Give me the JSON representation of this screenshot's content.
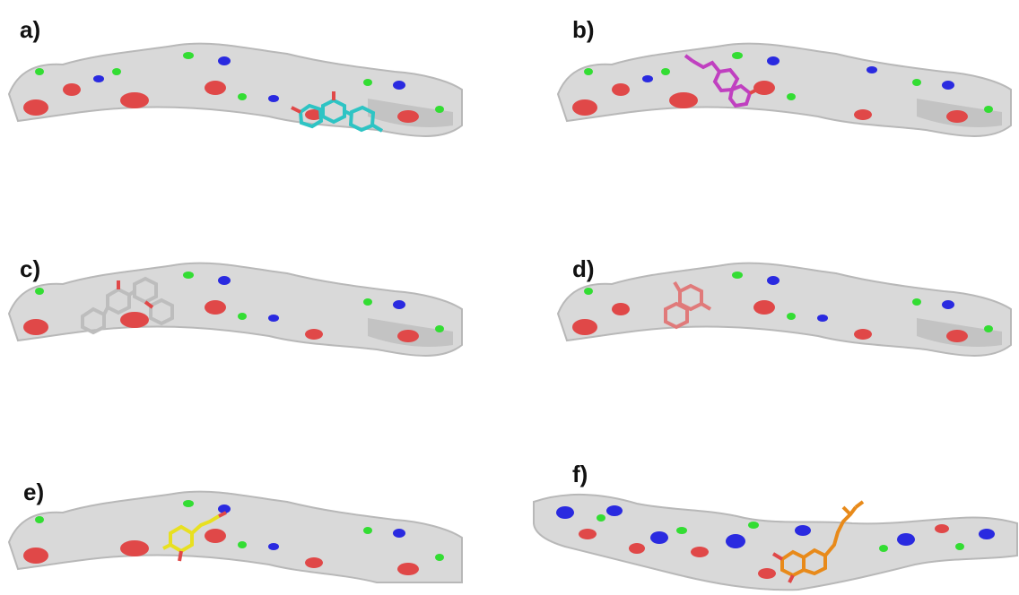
{
  "panels": [
    {
      "id": "a",
      "label": "a)",
      "ligand_color": "#2ec4c4",
      "ligand": "ligand-cyan"
    },
    {
      "id": "b",
      "label": "b)",
      "ligand_color": "#c040c0",
      "ligand": "ligand-magenta"
    },
    {
      "id": "c",
      "label": "c)",
      "ligand_color": "#bdbdbd",
      "ligand": "ligand-grey"
    },
    {
      "id": "d",
      "label": "d)",
      "ligand_color": "#e07a7a",
      "ligand": "ligand-salmon"
    },
    {
      "id": "e",
      "label": "e)",
      "ligand_color": "#e8e020",
      "ligand": "ligand-yellow"
    },
    {
      "id": "f",
      "label": "f)",
      "ligand_color": "#e88a1a",
      "ligand": "ligand-orange"
    }
  ],
  "colors": {
    "surface": "#d9d9d9",
    "surface_shade": "#b8b8b8",
    "oxygen": "#e04848",
    "nitrogen": "#2a2ae0",
    "highlight": "#33dd33"
  }
}
